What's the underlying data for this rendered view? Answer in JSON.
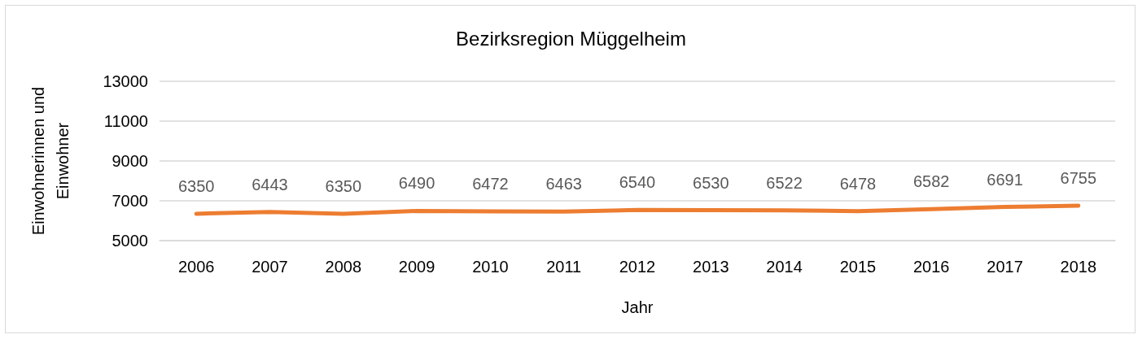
{
  "chart_data": {
    "type": "line",
    "title": "Bezirksregion Müggelheim",
    "xlabel": "Jahr",
    "ylabel": "Einwohnerinnen und Einwohner",
    "categories": [
      "2006",
      "2007",
      "2008",
      "2009",
      "2010",
      "2011",
      "2012",
      "2013",
      "2014",
      "2015",
      "2016",
      "2017",
      "2018"
    ],
    "series": [
      {
        "color": "#ed7d31",
        "values": [
          6350,
          6443,
          6350,
          6490,
          6472,
          6463,
          6540,
          6530,
          6522,
          6478,
          6582,
          6691,
          6755
        ]
      }
    ],
    "ylim": [
      5000,
      13000
    ],
    "yticks": [
      5000,
      7000,
      9000,
      11000,
      13000
    ],
    "grid": "y",
    "data_labels": true,
    "marker": "none",
    "line_style": "solid"
  }
}
